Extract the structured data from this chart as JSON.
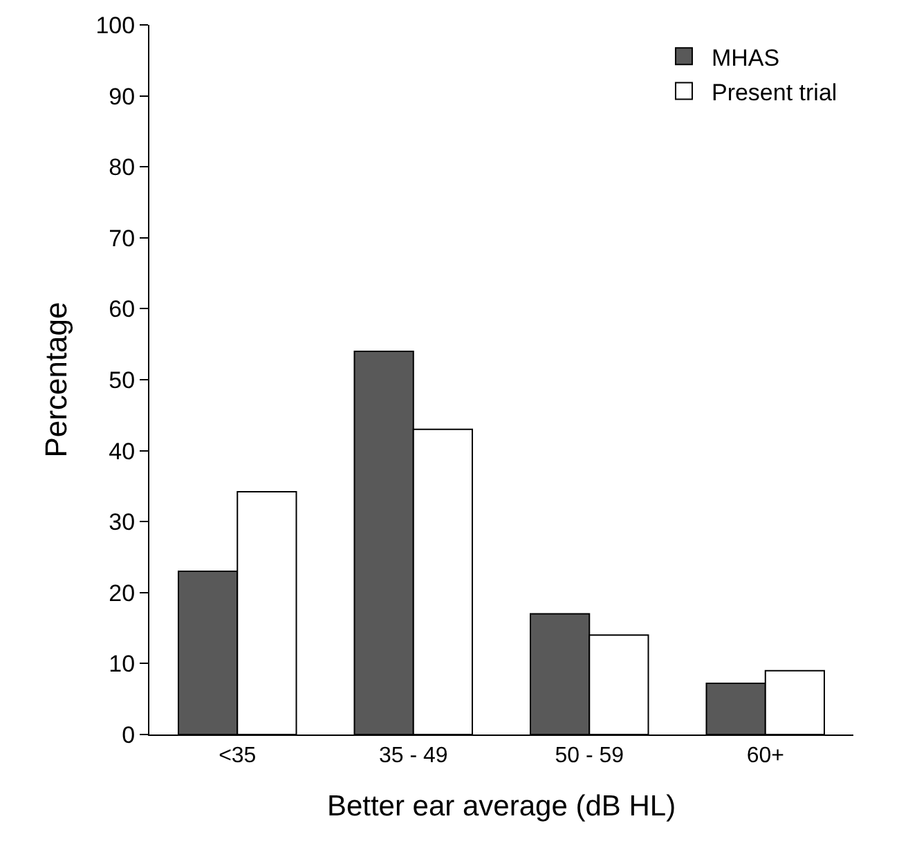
{
  "chart_data": {
    "type": "bar",
    "xlabel": "Better ear average (dB HL)",
    "ylabel": "Percentage",
    "categories": [
      "<35",
      "35 - 49",
      "50 - 59",
      "60+"
    ],
    "series": [
      {
        "name": "MHAS",
        "color": "#595959",
        "values": [
          23,
          54,
          17,
          7.2
        ]
      },
      {
        "name": "Present trial",
        "color": "#ffffff",
        "values": [
          34.2,
          43,
          14,
          9
        ]
      }
    ],
    "ylim": [
      0,
      100
    ],
    "yticks": [
      0,
      10,
      20,
      30,
      40,
      50,
      60,
      70,
      80,
      90,
      100
    ],
    "grid": false,
    "legend": "top right"
  }
}
